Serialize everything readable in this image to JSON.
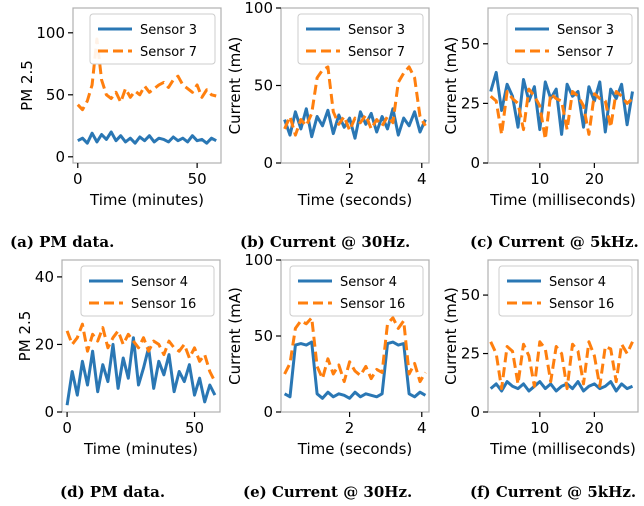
{
  "colors": {
    "blue": "#2a77b4",
    "orange": "#ff7f0e",
    "frame": "#b0b0b0"
  },
  "chart_data": [
    {
      "type": "line",
      "caption": "(a) PM data.",
      "xlabel": "Time (minutes)",
      "ylabel": "PM 2.5",
      "xlim": [
        -2,
        60
      ],
      "ylim": [
        -5,
        120
      ],
      "xticks": [
        0,
        50
      ],
      "yticks": [
        0,
        50,
        100
      ],
      "legend": "top-right",
      "series": [
        {
          "name": "Sensor 3",
          "color": "#2a77b4",
          "dash": "solid",
          "x": [
            0,
            2,
            4,
            6,
            8,
            10,
            12,
            14,
            16,
            18,
            20,
            22,
            24,
            26,
            28,
            30,
            32,
            34,
            36,
            38,
            40,
            42,
            44,
            46,
            48,
            50,
            52,
            54,
            56,
            58
          ],
          "y": [
            13,
            15,
            11,
            19,
            12,
            18,
            14,
            20,
            13,
            17,
            12,
            15,
            11,
            16,
            13,
            17,
            12,
            15,
            14,
            12,
            16,
            13,
            15,
            12,
            17,
            13,
            14,
            11,
            15,
            13
          ]
        },
        {
          "name": "Sensor 7",
          "color": "#ff7f0e",
          "dash": "dashed",
          "x": [
            0,
            2,
            4,
            6,
            8,
            10,
            12,
            14,
            16,
            18,
            20,
            22,
            24,
            26,
            28,
            30,
            32,
            34,
            36,
            38,
            40,
            42,
            44,
            46,
            48,
            50,
            52,
            54,
            56,
            58
          ],
          "y": [
            42,
            38,
            45,
            58,
            95,
            62,
            50,
            47,
            52,
            44,
            55,
            48,
            53,
            50,
            57,
            52,
            55,
            58,
            60,
            56,
            62,
            65,
            58,
            55,
            52,
            58,
            48,
            54,
            50,
            49
          ]
        }
      ]
    },
    {
      "type": "line",
      "caption": "(b) Current @ 30Hz.",
      "xlabel": "Time (seconds)",
      "ylabel": "Current (mA)",
      "xlim": [
        0.1,
        4.2
      ],
      "ylim": [
        0,
        100
      ],
      "xticks": [
        2,
        4
      ],
      "yticks": [
        0,
        50,
        100
      ],
      "legend": "top-right",
      "series": [
        {
          "name": "Sensor 3",
          "color": "#2a77b4",
          "dash": "solid",
          "x": [
            0.2,
            0.35,
            0.5,
            0.65,
            0.8,
            0.95,
            1.1,
            1.25,
            1.4,
            1.55,
            1.7,
            1.85,
            2.0,
            2.15,
            2.3,
            2.45,
            2.6,
            2.75,
            2.9,
            3.05,
            3.2,
            3.35,
            3.5,
            3.65,
            3.8,
            3.95,
            4.1
          ],
          "y": [
            28,
            18,
            33,
            22,
            35,
            17,
            30,
            24,
            34,
            19,
            31,
            23,
            29,
            16,
            33,
            25,
            32,
            20,
            30,
            22,
            35,
            18,
            29,
            24,
            33,
            20,
            28
          ]
        },
        {
          "name": "Sensor 7",
          "color": "#ff7f0e",
          "dash": "dashed",
          "x": [
            0.2,
            0.35,
            0.5,
            0.65,
            0.8,
            0.95,
            1.1,
            1.25,
            1.4,
            1.55,
            1.7,
            1.85,
            2.0,
            2.15,
            2.3,
            2.45,
            2.6,
            2.75,
            2.9,
            3.05,
            3.2,
            3.35,
            3.5,
            3.65,
            3.8,
            3.95,
            4.1
          ],
          "y": [
            22,
            30,
            18,
            28,
            24,
            32,
            55,
            60,
            62,
            33,
            25,
            30,
            21,
            29,
            26,
            31,
            22,
            28,
            24,
            30,
            26,
            52,
            58,
            62,
            55,
            30,
            24
          ]
        }
      ]
    },
    {
      "type": "line",
      "caption": "(c) Current @ 5kHz.",
      "xlabel": "Time (milliseconds)",
      "ylabel": "Current (mA)",
      "xlim": [
        0.5,
        28
      ],
      "ylim": [
        0,
        65
      ],
      "xticks": [
        10,
        20
      ],
      "yticks": [
        0,
        25,
        50
      ],
      "legend": "top-right",
      "series": [
        {
          "name": "Sensor 3",
          "color": "#2a77b4",
          "dash": "solid",
          "x": [
            1,
            2,
            3,
            4,
            5,
            6,
            7,
            8,
            9,
            10,
            11,
            12,
            13,
            14,
            15,
            16,
            17,
            18,
            19,
            20,
            21,
            22,
            23,
            24,
            25,
            26,
            27
          ],
          "y": [
            30,
            38,
            22,
            33,
            28,
            15,
            35,
            26,
            32,
            14,
            34,
            27,
            31,
            12,
            33,
            28,
            30,
            15,
            32,
            26,
            34,
            13,
            31,
            27,
            33,
            16,
            30
          ]
        },
        {
          "name": "Sensor 7",
          "color": "#ff7f0e",
          "dash": "dashed",
          "x": [
            1,
            2,
            3,
            4,
            5,
            6,
            7,
            8,
            9,
            10,
            11,
            12,
            13,
            14,
            15,
            16,
            17,
            18,
            19,
            20,
            21,
            22,
            23,
            24,
            25,
            26,
            27
          ],
          "y": [
            28,
            26,
            12,
            30,
            27,
            25,
            14,
            31,
            28,
            24,
            10,
            29,
            27,
            26,
            14,
            30,
            28,
            24,
            12,
            29,
            27,
            26,
            15,
            30,
            28,
            25,
            27
          ]
        }
      ]
    },
    {
      "type": "line",
      "caption": "(d) PM data.",
      "xlabel": "Time (minutes)",
      "ylabel": "PM 2.5",
      "xlim": [
        -2,
        60
      ],
      "ylim": [
        0,
        45
      ],
      "xticks": [
        0,
        50
      ],
      "yticks": [
        0,
        20,
        40
      ],
      "legend": "top-right",
      "series": [
        {
          "name": "Sensor 4",
          "color": "#2a77b4",
          "dash": "solid",
          "x": [
            0,
            2,
            4,
            6,
            8,
            10,
            12,
            14,
            16,
            18,
            20,
            22,
            24,
            26,
            28,
            30,
            32,
            34,
            36,
            38,
            40,
            42,
            44,
            46,
            48,
            50,
            52,
            54,
            56,
            58
          ],
          "y": [
            2,
            12,
            5,
            15,
            8,
            18,
            6,
            14,
            9,
            20,
            7,
            16,
            10,
            22,
            8,
            13,
            19,
            7,
            15,
            11,
            17,
            6,
            12,
            9,
            14,
            5,
            10,
            3,
            8,
            5
          ]
        },
        {
          "name": "Sensor 16",
          "color": "#ff7f0e",
          "dash": "dashed",
          "x": [
            0,
            2,
            4,
            6,
            8,
            10,
            12,
            14,
            16,
            18,
            20,
            22,
            24,
            26,
            28,
            30,
            32,
            34,
            36,
            38,
            40,
            42,
            44,
            46,
            48,
            50,
            52,
            54,
            56,
            58
          ],
          "y": [
            24,
            20,
            22,
            26,
            18,
            23,
            21,
            25,
            19,
            22,
            24,
            20,
            23,
            21,
            19,
            22,
            18,
            21,
            20,
            17,
            21,
            19,
            18,
            20,
            16,
            19,
            15,
            17,
            12,
            9
          ]
        }
      ]
    },
    {
      "type": "line",
      "caption": "(e) Current @ 30Hz.",
      "xlabel": "Time (seconds)",
      "ylabel": "Current (mA)",
      "xlim": [
        0.1,
        4.2
      ],
      "ylim": [
        0,
        100
      ],
      "xticks": [
        2,
        4
      ],
      "yticks": [
        0,
        50,
        100
      ],
      "legend": "top-right",
      "series": [
        {
          "name": "Sensor 4",
          "color": "#2a77b4",
          "dash": "solid",
          "x": [
            0.2,
            0.35,
            0.5,
            0.65,
            0.8,
            0.95,
            1.1,
            1.25,
            1.4,
            1.55,
            1.7,
            1.85,
            2.0,
            2.15,
            2.3,
            2.45,
            2.6,
            2.75,
            2.9,
            3.05,
            3.2,
            3.35,
            3.5,
            3.65,
            3.8,
            3.95,
            4.1
          ],
          "y": [
            12,
            10,
            44,
            45,
            44,
            46,
            12,
            9,
            13,
            10,
            12,
            11,
            9,
            13,
            10,
            12,
            11,
            10,
            12,
            45,
            46,
            44,
            45,
            12,
            10,
            13,
            11
          ]
        },
        {
          "name": "Sensor 16",
          "color": "#ff7f0e",
          "dash": "dashed",
          "x": [
            0.2,
            0.35,
            0.5,
            0.65,
            0.8,
            0.95,
            1.1,
            1.25,
            1.4,
            1.55,
            1.7,
            1.85,
            2.0,
            2.15,
            2.3,
            2.45,
            2.6,
            2.75,
            2.9,
            3.05,
            3.2,
            3.35,
            3.5,
            3.65,
            3.8,
            3.95,
            4.1
          ],
          "y": [
            25,
            32,
            55,
            60,
            58,
            62,
            30,
            22,
            35,
            25,
            31,
            20,
            33,
            27,
            24,
            30,
            22,
            28,
            26,
            58,
            62,
            55,
            60,
            25,
            32,
            20,
            26
          ]
        }
      ]
    },
    {
      "type": "line",
      "caption": "(f) Current @ 5kHz.",
      "xlabel": "Time (milliseconds)",
      "ylabel": "Current (mA)",
      "xlim": [
        0.5,
        28
      ],
      "ylim": [
        0,
        65
      ],
      "xticks": [
        10,
        20
      ],
      "yticks": [
        0,
        25,
        50
      ],
      "legend": "top-right",
      "series": [
        {
          "name": "Sensor 4",
          "color": "#2a77b4",
          "dash": "solid",
          "x": [
            1,
            2,
            3,
            4,
            5,
            6,
            7,
            8,
            9,
            10,
            11,
            12,
            13,
            14,
            15,
            16,
            17,
            18,
            19,
            20,
            21,
            22,
            23,
            24,
            25,
            26,
            27
          ],
          "y": [
            10,
            12,
            9,
            13,
            11,
            10,
            12,
            9,
            11,
            13,
            10,
            12,
            9,
            11,
            12,
            10,
            13,
            9,
            11,
            12,
            10,
            11,
            13,
            9,
            12,
            10,
            11
          ]
        },
        {
          "name": "Sensor 16",
          "color": "#ff7f0e",
          "dash": "dashed",
          "x": [
            1,
            2,
            3,
            4,
            5,
            6,
            7,
            8,
            9,
            10,
            11,
            12,
            13,
            14,
            15,
            16,
            17,
            18,
            19,
            20,
            21,
            22,
            23,
            24,
            25,
            26,
            27
          ],
          "y": [
            30,
            25,
            10,
            28,
            26,
            12,
            29,
            24,
            11,
            30,
            27,
            13,
            28,
            25,
            10,
            29,
            26,
            12,
            30,
            24,
            11,
            28,
            27,
            13,
            29,
            25,
            30
          ]
        }
      ]
    }
  ]
}
